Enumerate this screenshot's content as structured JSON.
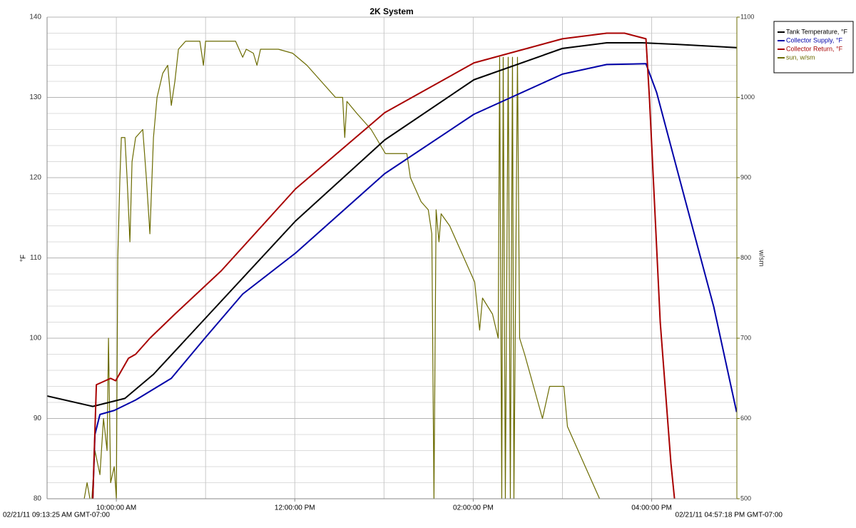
{
  "chart_data": {
    "type": "line",
    "title": "2K System",
    "ylabel": "°F",
    "y2label": "w/sm",
    "x_start_label": "02/21/11 09:13:25 AM GMT-07:00",
    "x_end_label": "02/21/11 04:57:18 PM GMT-07:00",
    "xlim": [
      9.2236,
      16.955
    ],
    "xticks": [
      {
        "value": 10,
        "label": "10:00:00 AM"
      },
      {
        "value": 12,
        "label": "12:00:00 PM"
      },
      {
        "value": 14,
        "label": "02:00:00 PM"
      },
      {
        "value": 16,
        "label": "04:00:00 PM"
      }
    ],
    "xgrid": [
      10,
      11,
      12,
      13,
      14,
      15,
      16
    ],
    "ylim": [
      80,
      140
    ],
    "yticks": [
      80,
      90,
      100,
      110,
      120,
      130,
      140
    ],
    "yminorticks": [
      82,
      84,
      86,
      88,
      92,
      94,
      96,
      98,
      102,
      104,
      106,
      108,
      112,
      114,
      116,
      118,
      122,
      124,
      126,
      128,
      132,
      134,
      136,
      138
    ],
    "y2lim": [
      500,
      1100
    ],
    "y2ticks": [
      500,
      600,
      700,
      800,
      900,
      1000,
      1100
    ],
    "grid": true,
    "legend": "top-right",
    "series": [
      {
        "name": "Tank Temperature, °F",
        "color": "#000000",
        "x": [
          9.224,
          9.736,
          10.096,
          10.416,
          11.016,
          12.008,
          13.008,
          14.008,
          15.0,
          15.496,
          15.896,
          16.296,
          16.952
        ],
        "values": [
          92.8,
          91.5,
          92.5,
          95.5,
          102.7,
          114.6,
          124.7,
          132.2,
          136.1,
          136.8,
          136.8,
          136.6,
          136.2
        ]
      },
      {
        "name": "Collector Supply, °F",
        "color": "#0000a8",
        "x": [
          9.736,
          9.76,
          9.816,
          9.976,
          10.216,
          10.616,
          10.992,
          11.416,
          12.008,
          13.008,
          14.008,
          15.0,
          15.496,
          15.936,
          16.056,
          16.376,
          16.696,
          16.952
        ],
        "values": [
          80,
          88,
          90.5,
          91,
          92.3,
          95,
          100,
          105.5,
          110.6,
          120.5,
          127.9,
          132.9,
          134.1,
          134.2,
          130.6,
          117.2,
          103.9,
          90.8
        ]
      },
      {
        "name": "Collector Return, °F",
        "color": "#a80000",
        "x": [
          9.736,
          9.776,
          9.936,
          9.992,
          10.136,
          10.216,
          10.376,
          10.656,
          11.176,
          12.008,
          13.008,
          14.008,
          15.0,
          15.496,
          15.696,
          15.936,
          15.976,
          16.096,
          16.216,
          16.256
        ],
        "values": [
          80,
          94.2,
          95,
          94.7,
          97.5,
          98,
          100,
          103,
          108.4,
          118.6,
          128.1,
          134.3,
          137.3,
          138,
          138,
          137.3,
          129.7,
          102,
          84.4,
          80
        ]
      },
      {
        "name": "sun, w/sm",
        "color": "#6b6b00",
        "axis": "y2",
        "x": [
          9.64,
          9.672,
          9.72,
          9.76,
          9.816,
          9.856,
          9.896,
          9.912,
          9.936,
          9.976,
          10.0,
          10.016,
          10.04,
          10.056,
          10.096,
          10.12,
          10.152,
          10.176,
          10.216,
          10.296,
          10.336,
          10.376,
          10.416,
          10.456,
          10.52,
          10.576,
          10.616,
          10.656,
          10.696,
          10.776,
          10.936,
          10.976,
          11.0,
          11.096,
          11.336,
          11.416,
          11.456,
          11.536,
          11.576,
          11.616,
          11.816,
          11.976,
          12.136,
          12.296,
          12.456,
          12.536,
          12.56,
          12.584,
          12.696,
          12.856,
          13.016,
          13.136,
          13.256,
          13.296,
          13.416,
          13.496,
          13.536,
          13.56,
          13.584,
          13.616,
          13.64,
          13.736,
          13.896,
          14.016,
          14.072,
          14.104,
          14.216,
          14.28,
          14.296,
          14.32,
          14.336,
          14.36,
          14.392,
          14.416,
          14.44,
          14.456,
          14.496,
          14.52,
          14.576,
          14.776,
          14.856,
          15.016,
          15.056,
          15.256,
          15.416
        ],
        "values": [
          500,
          520,
          490,
          560,
          530,
          600,
          560,
          700,
          520,
          540,
          500,
          800,
          900,
          950,
          950,
          900,
          820,
          920,
          950,
          960,
          900,
          830,
          950,
          1000,
          1030,
          1040,
          990,
          1020,
          1060,
          1070,
          1070,
          1040,
          1070,
          1070,
          1070,
          1050,
          1060,
          1055,
          1040,
          1060,
          1060,
          1055,
          1040,
          1020,
          1000,
          1000,
          950,
          995,
          980,
          960,
          930,
          930,
          930,
          900,
          870,
          860,
          830,
          500,
          860,
          820,
          855,
          840,
          800,
          770,
          710,
          750,
          730,
          700,
          1050,
          500,
          1050,
          500,
          1050,
          500,
          1050,
          500,
          1050,
          700,
          680,
          600,
          640,
          640,
          590,
          540,
          500
        ]
      }
    ]
  }
}
